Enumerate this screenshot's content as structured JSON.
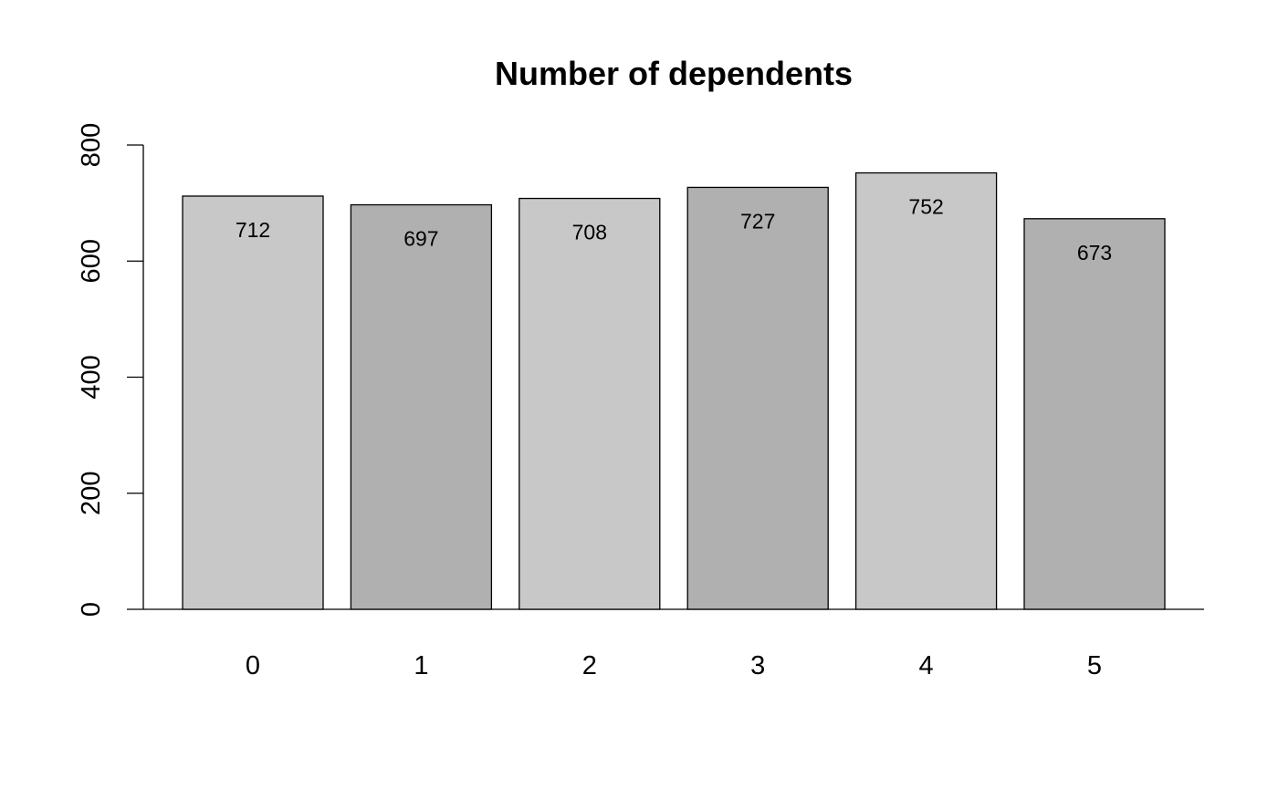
{
  "chart_data": {
    "type": "bar",
    "title": "Number of dependents",
    "xlabel": "",
    "ylabel": "",
    "categories": [
      "0",
      "1",
      "2",
      "3",
      "4",
      "5"
    ],
    "values": [
      712,
      697,
      708,
      727,
      752,
      673
    ],
    "data_labels": [
      "712",
      "697",
      "708",
      "727",
      "752",
      "673"
    ],
    "ylim": [
      0,
      800
    ],
    "y_ticks": [
      0,
      200,
      400,
      600,
      800
    ],
    "y_tick_labels": [
      "0",
      "200",
      "400",
      "600",
      "800"
    ],
    "bar_colors": [
      "#c8c8c8",
      "#b0b0b0",
      "#c8c8c8",
      "#b0b0b0",
      "#c8c8c8",
      "#b0b0b0"
    ],
    "grid": false,
    "legend": "none"
  }
}
